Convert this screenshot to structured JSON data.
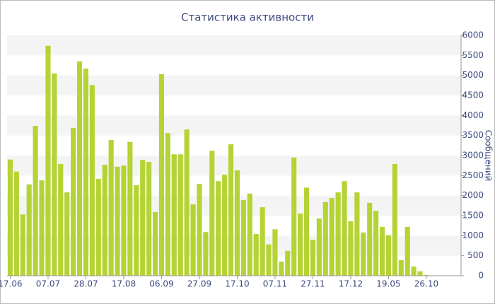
{
  "chart_data": {
    "type": "bar",
    "title": "Статистика активности",
    "y_label": "Сообщений",
    "categories": [
      "17.06",
      null,
      null,
      null,
      null,
      null,
      "07.07",
      null,
      null,
      null,
      null,
      null,
      "28.07",
      null,
      null,
      null,
      null,
      null,
      "17.08",
      null,
      null,
      null,
      null,
      null,
      "06.09",
      null,
      null,
      null,
      null,
      null,
      "27.09",
      null,
      null,
      null,
      null,
      null,
      "17.10",
      null,
      null,
      null,
      null,
      null,
      "07.11",
      null,
      null,
      null,
      null,
      null,
      "27.11",
      null,
      null,
      null,
      null,
      null,
      "17.12",
      null,
      null,
      null,
      null,
      null,
      "19.05",
      null,
      null,
      null,
      null,
      null,
      "26.10",
      null,
      null,
      null,
      null,
      null
    ],
    "values": [
      2900,
      2600,
      1530,
      2280,
      3740,
      2380,
      5740,
      5050,
      2790,
      2080,
      3690,
      5350,
      5170,
      4760,
      2420,
      2770,
      3390,
      2720,
      2750,
      3340,
      2260,
      2890,
      2840,
      1590,
      5030,
      3560,
      3030,
      3030,
      3650,
      1780,
      2290,
      1090,
      3120,
      2360,
      2520,
      3280,
      2630,
      1890,
      2050,
      1040,
      1710,
      780,
      1160,
      350,
      620,
      2950,
      1550,
      2200,
      900,
      1430,
      1840,
      1940,
      2080,
      2360,
      1360,
      2080,
      1080,
      1820,
      1620,
      1220,
      1010,
      2790,
      390,
      1220,
      230,
      110,
      20,
      10,
      10,
      10,
      10,
      10
    ],
    "color": "#b5d334",
    "ylim": [
      0,
      6000
    ],
    "yticks": [
      0,
      500,
      1000,
      1500,
      2000,
      2500,
      3000,
      3500,
      4000,
      4500,
      5000,
      5500,
      6000
    ],
    "grid": true
  }
}
